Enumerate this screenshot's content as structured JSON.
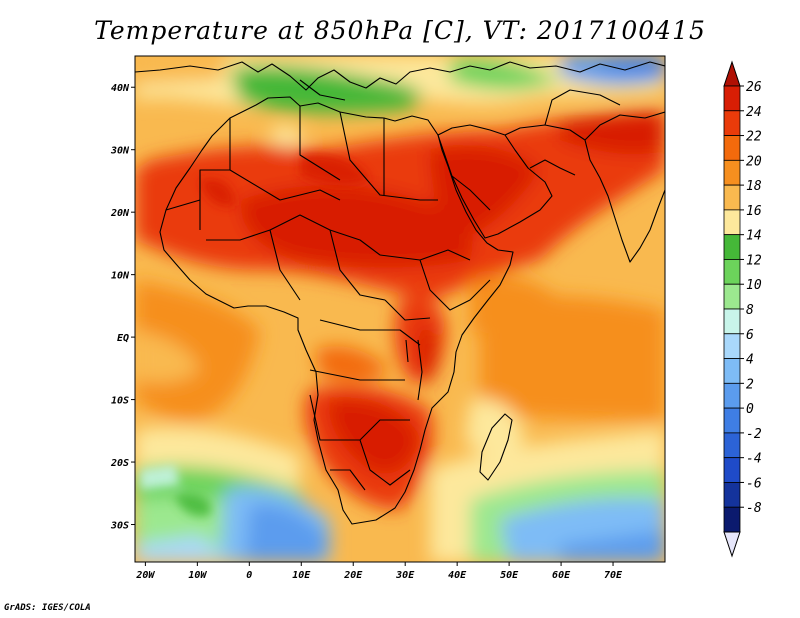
{
  "title": "Temperature at 850hPa [C], VT: 2017100415",
  "footer": "GrADS: IGES/COLA",
  "map": {
    "lon_range": [
      -22,
      80
    ],
    "lat_range": [
      -36,
      45
    ],
    "x_ticks": [
      {
        "lon": -20,
        "label": "20W"
      },
      {
        "lon": -10,
        "label": "10W"
      },
      {
        "lon": 0,
        "label": "0"
      },
      {
        "lon": 10,
        "label": "10E"
      },
      {
        "lon": 20,
        "label": "20E"
      },
      {
        "lon": 30,
        "label": "30E"
      },
      {
        "lon": 40,
        "label": "40E"
      },
      {
        "lon": 50,
        "label": "50E"
      },
      {
        "lon": 60,
        "label": "60E"
      },
      {
        "lon": 70,
        "label": "70E"
      }
    ],
    "y_ticks": [
      {
        "lat": 40,
        "label": "40N"
      },
      {
        "lat": 30,
        "label": "30N"
      },
      {
        "lat": 20,
        "label": "20N"
      },
      {
        "lat": 10,
        "label": "10N"
      },
      {
        "lat": 0,
        "label": "EQ"
      },
      {
        "lat": -10,
        "label": "10S"
      },
      {
        "lat": -20,
        "label": "20S"
      },
      {
        "lat": -30,
        "label": "30S"
      }
    ]
  },
  "colorbar": {
    "labels": [
      "26",
      "24",
      "22",
      "20",
      "18",
      "16",
      "14",
      "12",
      "10",
      "8",
      "6",
      "4",
      "2",
      "0",
      "-2",
      "-4",
      "-6",
      "-8"
    ],
    "colors_top_to_bottom": [
      "#d81e05",
      "#ea3b0a",
      "#f36a0c",
      "#f68f1f",
      "#f9b94f",
      "#fde89c",
      "#45b838",
      "#6cd35b",
      "#9ce88f",
      "#c8f5ea",
      "#a9d8fb",
      "#7ebcf6",
      "#5b9cee",
      "#3f7ee4",
      "#2c63d6",
      "#1f4bc8",
      "#14339c",
      "#0b1a6e"
    ]
  }
}
